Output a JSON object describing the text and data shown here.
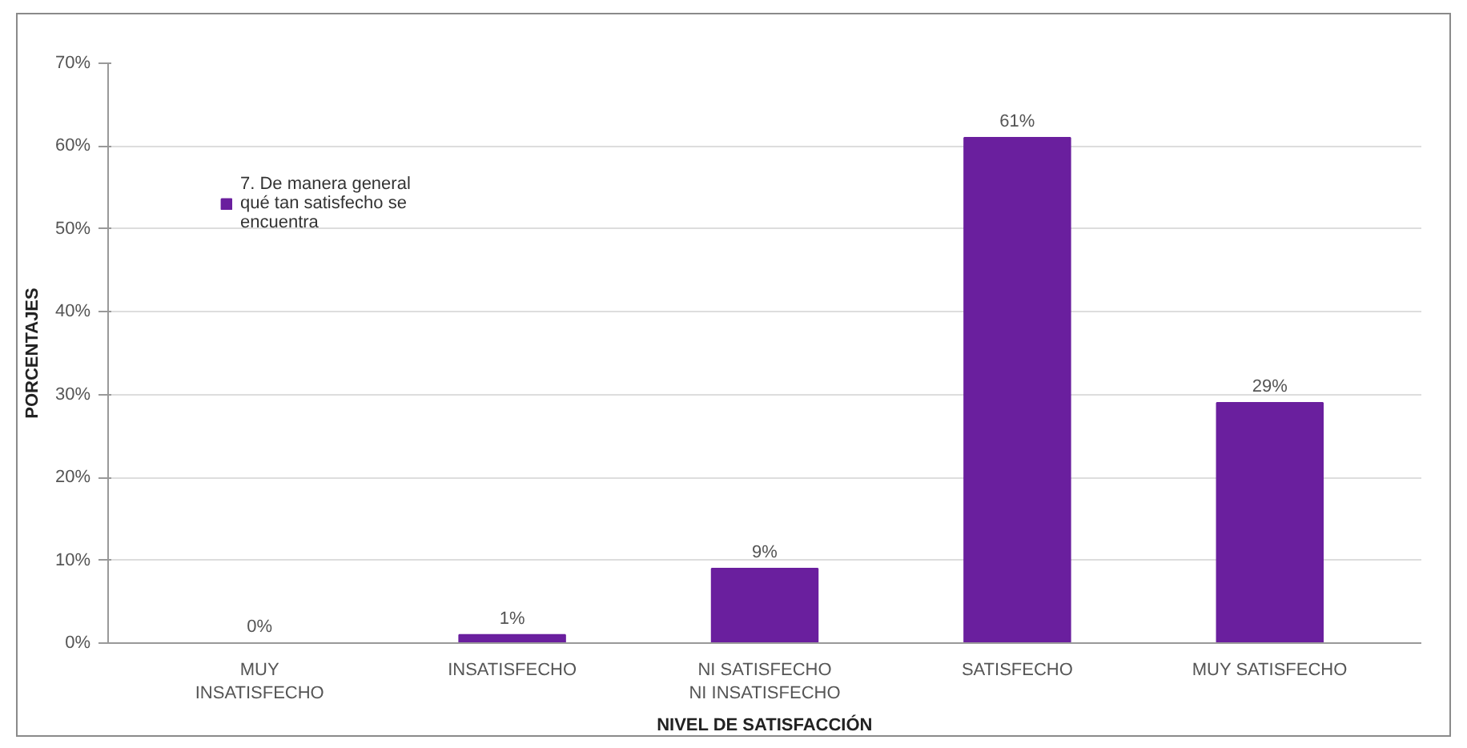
{
  "chart_data": {
    "type": "bar",
    "xlabel": "NIVEL DE SATISFACCIÓN",
    "ylabel": "PORCENTAJES",
    "categories": [
      "MUY INSATISFECHO",
      "INSATISFECHO",
      "NI SATISFECHO NI INSATISFECHO",
      "SATISFECHO",
      "MUY SATISFECHO"
    ],
    "series": [
      {
        "name": "7. De manera general qué tan satisfecho se encuentra",
        "color": "#6a1f9e",
        "values": [
          0,
          1,
          9,
          61,
          29
        ],
        "value_labels": [
          "0%",
          "1%",
          "9%",
          "61%",
          "29%"
        ]
      }
    ],
    "ylim": [
      0,
      70
    ],
    "yticks": [
      {
        "value": 0,
        "label": "0%"
      },
      {
        "value": 10,
        "label": "10%"
      },
      {
        "value": 20,
        "label": "20%"
      },
      {
        "value": 30,
        "label": "30%"
      },
      {
        "value": 40,
        "label": "40%"
      },
      {
        "value": 50,
        "label": "50%"
      },
      {
        "value": 60,
        "label": "60%"
      },
      {
        "value": 70,
        "label": "70%"
      }
    ],
    "grid": "y",
    "legend": "top left"
  }
}
